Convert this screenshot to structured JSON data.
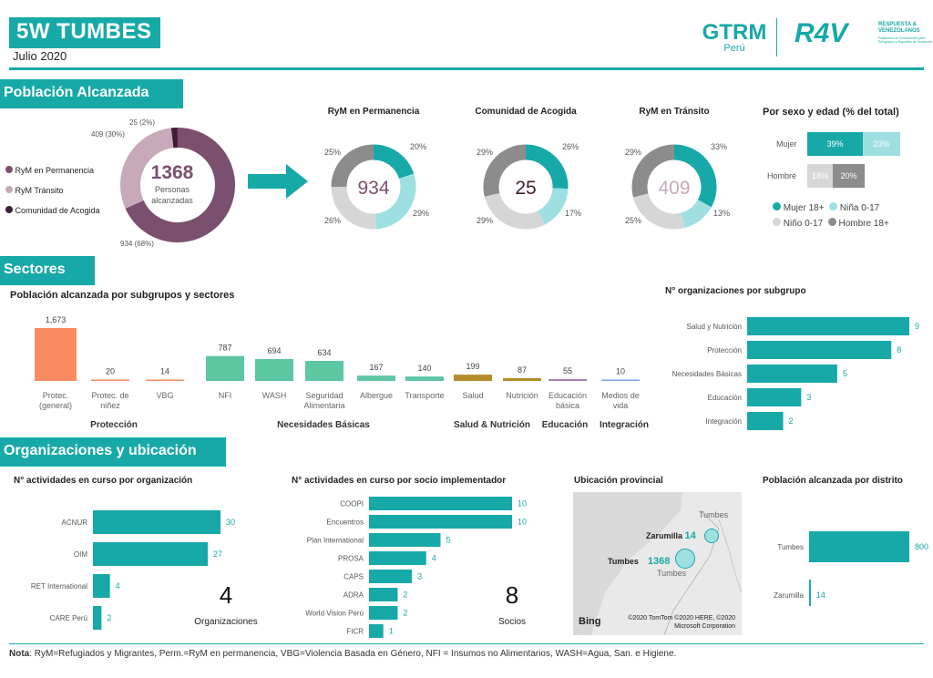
{
  "header": {
    "title": "5W TUMBES",
    "date": "Julio 2020",
    "logo_gtrm": "GTRM",
    "logo_peru": "Perú",
    "logo_r4v": "R4V",
    "logo_r4v_sub": "RESPUESTA & VENEZOLANOS",
    "logo_r4v_small": "Plataforma de Coordinación para Refugiados y Migrantes de Venezuela"
  },
  "sections": {
    "poblacion": "Población Alcanzada",
    "sectores": "Sectores",
    "org": "Organizaciones y ubicación"
  },
  "poblacion": {
    "legend": [
      "RyM en Permanencia",
      "RyM Tránsito",
      "Comunidad de Acogida"
    ],
    "total": "1368",
    "total_sub": "Personas alcanzadas",
    "lbl_top": "25 (2%)",
    "lbl_left": "409 (30%)",
    "lbl_bottom": "934 (68%)",
    "colors": [
      "#7b4f6e",
      "#c7a9b9",
      "#3d1f35"
    ],
    "donuts": [
      {
        "title": "RyM en Permanencia",
        "center": "934",
        "labels": [
          "20%",
          "29%",
          "26%",
          "25%"
        ]
      },
      {
        "title": "Comunidad de Acogida",
        "center": "25",
        "labels": [
          "26%",
          "17%",
          "29%",
          "29%"
        ]
      },
      {
        "title": "RyM en Tránsito",
        "center": "409",
        "labels": [
          "33%",
          "13%",
          "25%",
          "29%"
        ]
      }
    ],
    "sexo": {
      "title": "Por sexo y edad (% del total)",
      "rows": [
        {
          "label": "Mujer",
          "a": "39%",
          "b": "23%"
        },
        {
          "label": "Hombre",
          "a": "18%",
          "b": "20%"
        }
      ],
      "legend": [
        "Mujer 18+",
        "Niña 0-17",
        "Niño 0-17",
        "Hombre 18+"
      ]
    }
  },
  "sectores": {
    "title": "Población alcanzada por subgrupos y sectores",
    "groups": [
      "Protección",
      "Necesidades Básicas",
      "Salud & Nutrición",
      "Educación",
      "Integración"
    ],
    "org_title": "N° organizaciones por subgrupo"
  },
  "org": {
    "t1": "N° actividades en curso por organización",
    "t2": "N° actividades en curso por socio implementador",
    "t3": "Ubicación provincial",
    "t4": "Población alcanzada por distrito",
    "kpi1": "4",
    "kpi1_lbl": "Organizaciones",
    "kpi2": "8",
    "kpi2_lbl": "Socios",
    "map": {
      "tumbes_top": "Tumbes",
      "zarumilla": "Zarumilla",
      "zar_val": "14",
      "tumbes": "Tumbes",
      "tum_val": "1368",
      "tumbes_city": "Tumbes",
      "credit": "©2020 TomTom ©2020 HERE, ©2020 Microsoft Corporation",
      "bing": "Bing"
    }
  },
  "note": {
    "bold": "Nota",
    "text": ": RyM=Refugiados y Migrantes, Perm.=RyM en permanencia, VBG=Violencia Basada en Género, NFI = Insumos no Alimentarios, WASH=Agua, San. e Higiene."
  },
  "chart_data": [
    {
      "type": "bar",
      "title": "Población alcanzada por subgrupos y sectores",
      "categories": [
        "Protec. (general)",
        "Protec. de niñez",
        "VBG",
        "NFI",
        "WASH",
        "Seguridad Alimentaria",
        "Albergue",
        "Transporte",
        "Salud",
        "Nutrición",
        "Educación básica",
        "Medios de vida"
      ],
      "values": [
        1673,
        20,
        14,
        787,
        694,
        634,
        167,
        140,
        199,
        87,
        55,
        10
      ],
      "value_labels": [
        "1,673",
        "20",
        "14",
        "787",
        "694",
        "634",
        "167",
        "140",
        "199",
        "87",
        "55",
        "10"
      ],
      "colors": [
        "#fa8b60",
        "#fa8b60",
        "#fa8b60",
        "#5cc7a0",
        "#5cc7a0",
        "#5cc7a0",
        "#5cc7a0",
        "#5cc7a0",
        "#b58c2c",
        "#b58c2c",
        "#a27ab0",
        "#7aa6e0"
      ]
    },
    {
      "type": "bar",
      "title": "N° organizaciones por subgrupo",
      "categories": [
        "Salud y Nutrición",
        "Protección",
        "Necesidades Básicas",
        "Educación",
        "Integración"
      ],
      "values": [
        9,
        8,
        5,
        3,
        2
      ]
    },
    {
      "type": "bar",
      "title": "N° actividades en curso por organización",
      "categories": [
        "ACNUR",
        "OIM",
        "RET International",
        "CARE Perú"
      ],
      "values": [
        30,
        27,
        4,
        2
      ]
    },
    {
      "type": "bar",
      "title": "N° actividades en curso por socio implementador",
      "categories": [
        "COOPI",
        "Encuentros",
        "Plan International",
        "PROSA",
        "CAPS",
        "ADRA",
        "World Vision Perú",
        "FICR"
      ],
      "values": [
        10,
        10,
        5,
        4,
        3,
        2,
        2,
        1
      ]
    },
    {
      "type": "bar",
      "title": "Población alcanzada por distrito",
      "categories": [
        "Tumbes",
        "Zarumilla"
      ],
      "values": [
        800,
        14
      ],
      "value_labels": [
        "800",
        "14"
      ]
    },
    {
      "type": "pie",
      "title": "Población Alcanzada",
      "categories": [
        "RyM en Permanencia",
        "RyM Tránsito",
        "Comunidad de Acogida"
      ],
      "values": [
        934,
        409,
        25
      ]
    }
  ]
}
